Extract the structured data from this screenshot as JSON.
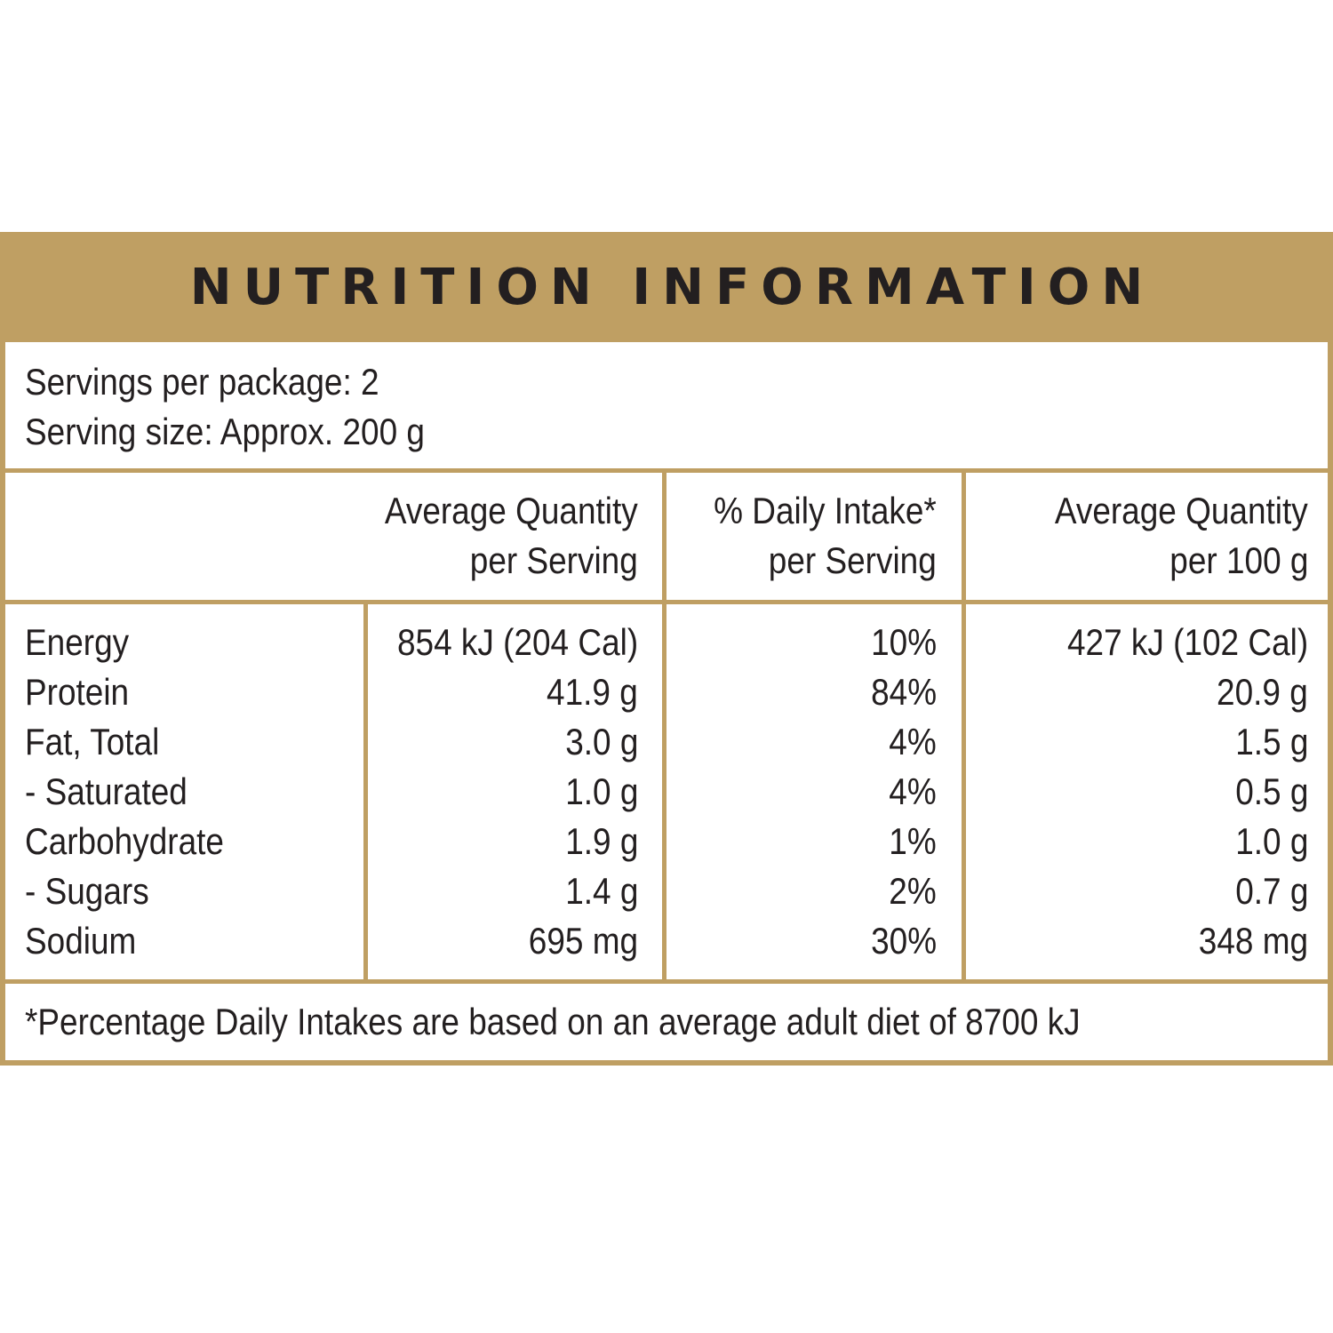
{
  "title": "NUTRITION INFORMATION",
  "servings_per_package": "Servings per package: 2",
  "serving_size": "Serving size: Approx. 200 g",
  "columns": [
    {
      "line1": "Average Quantity",
      "line2": "per Serving"
    },
    {
      "line1": "% Daily Intake*",
      "line2": "per Serving"
    },
    {
      "line1": "Average Quantity",
      "line2": "per 100 g"
    }
  ],
  "rows": [
    {
      "name": "Energy",
      "per_serving": "854 kJ (204 Cal)",
      "daily_intake": "10%",
      "per_100g": "427 kJ (102 Cal)"
    },
    {
      "name": "Protein",
      "per_serving": "41.9 g",
      "daily_intake": "84%",
      "per_100g": "20.9 g"
    },
    {
      "name": "Fat, Total",
      "per_serving": "3.0 g",
      "daily_intake": "4%",
      "per_100g": "1.5 g"
    },
    {
      "name": "- Saturated",
      "per_serving": "1.0 g",
      "daily_intake": "4%",
      "per_100g": "0.5 g"
    },
    {
      "name": "Carbohydrate",
      "per_serving": "1.9 g",
      "daily_intake": "1%",
      "per_100g": "1.0 g"
    },
    {
      "name": "- Sugars",
      "per_serving": "1.4 g",
      "daily_intake": "2%",
      "per_100g": "0.7 g"
    },
    {
      "name": "Sodium",
      "per_serving": "695 mg",
      "daily_intake": "30%",
      "per_100g": "348 mg"
    }
  ],
  "footnote": "*Percentage Daily Intakes are based on an average adult diet of 8700 kJ",
  "colors": {
    "accent": "#bf9f63",
    "text": "#231f20",
    "background": "#ffffff"
  }
}
